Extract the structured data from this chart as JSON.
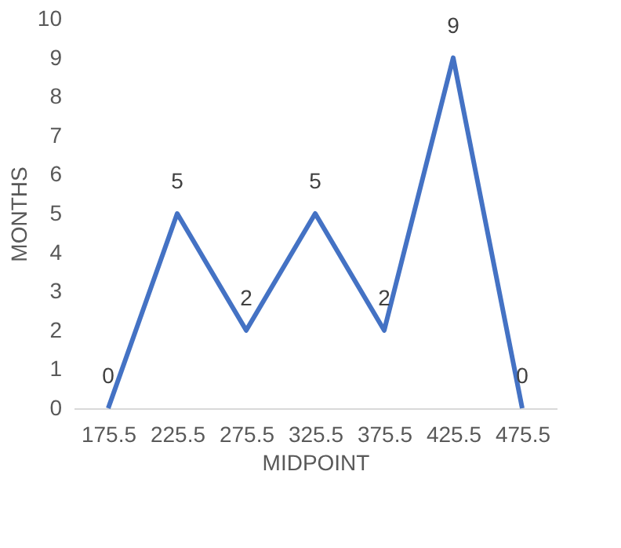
{
  "chart_data": {
    "type": "line",
    "xlabel": "MIDPOINT",
    "ylabel": "MONTHS",
    "categories": [
      "175.5",
      "225.5",
      "275.5",
      "325.5",
      "375.5",
      "425.5",
      "475.5"
    ],
    "series": [
      {
        "color": "#4472c4",
        "values": [
          0,
          5,
          2,
          5,
          2,
          9,
          0
        ]
      }
    ],
    "ylim": [
      0,
      10
    ],
    "yticks": [
      0,
      1,
      2,
      3,
      4,
      5,
      6,
      7,
      8,
      9,
      10
    ],
    "grid": false,
    "data_labels": true,
    "marker": "none",
    "line_style": "solid",
    "legend": false
  }
}
